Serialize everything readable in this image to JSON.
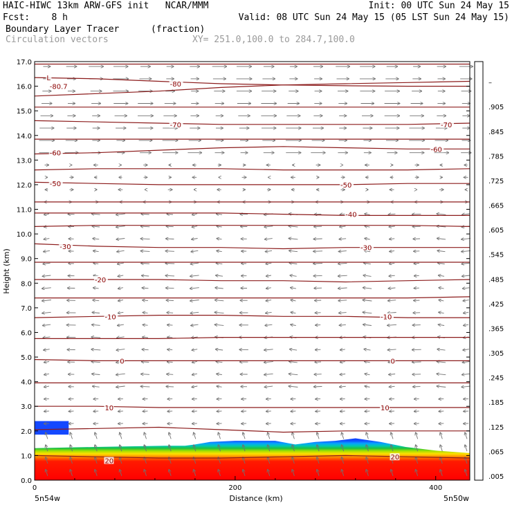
{
  "header": {
    "line1_left": "HAIC-HIWC 13km ARW-GFS init   NCAR/MMM",
    "line1_right": "Init: 00 UTC Sun 24 May 15",
    "line2_left": "Fcst:    8 h",
    "line2_right": "Valid: 08 UTC Sun 24 May 15 (05 LST Sun 24 May 15)",
    "line3_field": "Boundary Layer Tracer",
    "line3_units": "(fraction)",
    "line4_field": "Circulation vectors",
    "line4_xy": "XY= 251.0,100.0 to 284.7,100.0"
  },
  "axes": {
    "ylabel": "Height (km)",
    "xlabel": "Distance (km)",
    "x_left_label": "5n54w",
    "x_right_label": "5n50w"
  },
  "chart_data": {
    "type": "heatmap",
    "xlim": [
      0,
      434
    ],
    "ylim": [
      0,
      17
    ],
    "xticks": [
      0,
      200,
      400
    ],
    "yticks": [
      "0.0",
      "1.0",
      "2.0",
      "3.0",
      "4.0",
      "5.0",
      "6.0",
      "7.0",
      "8.0",
      "9.0",
      "10.0",
      "11.0",
      "12.0",
      "13.0",
      "14.0",
      "15.0",
      "16.0",
      "17.0"
    ],
    "tracer_top_km": [
      {
        "x": 0,
        "y": 1.3
      },
      {
        "x": 60,
        "y": 1.35
      },
      {
        "x": 130,
        "y": 1.4
      },
      {
        "x": 150,
        "y": 1.4
      },
      {
        "x": 160,
        "y": 1.45
      },
      {
        "x": 175,
        "y": 1.55
      },
      {
        "x": 200,
        "y": 1.6
      },
      {
        "x": 240,
        "y": 1.6
      },
      {
        "x": 260,
        "y": 1.45
      },
      {
        "x": 280,
        "y": 1.55
      },
      {
        "x": 300,
        "y": 1.6
      },
      {
        "x": 320,
        "y": 1.7
      },
      {
        "x": 345,
        "y": 1.55
      },
      {
        "x": 370,
        "y": 1.35
      },
      {
        "x": 400,
        "y": 1.2
      },
      {
        "x": 434,
        "y": 1.1
      }
    ],
    "tracer_blob": {
      "x0": 0,
      "x1": 34,
      "y0": 1.85,
      "y1": 2.4
    },
    "colorbar": {
      "labels": [
        ".005",
        ".065",
        ".125",
        ".185",
        ".245",
        ".305",
        ".365",
        ".425",
        ".485",
        ".545",
        ".605",
        ".665",
        ".725",
        ".785",
        ".845",
        ".905",
        "–"
      ],
      "colors": [
        "#ffffff",
        "#1040ff",
        "#08a0ff",
        "#00d0d0",
        "#00d090",
        "#00c030",
        "#40d000",
        "#90e000",
        "#d0f000",
        "#ffff00",
        "#ffd800",
        "#ffb000",
        "#ff8800",
        "#ff6000",
        "#ff3000",
        "#ff1010",
        "#ff0000"
      ]
    },
    "contours": [
      {
        "label": "-80.7",
        "y": [
          16.35,
          16.3,
          16.2,
          16.1,
          16.05,
          16.02,
          16.0,
          16.0
        ]
      },
      {
        "label": "-80",
        "y": [
          15.6,
          15.7,
          15.8,
          15.95,
          16.05,
          16.1,
          16.15,
          16.2
        ]
      },
      {
        "label": "-70",
        "y": [
          14.6,
          14.55,
          14.5,
          14.45,
          14.45,
          14.45,
          14.45,
          14.5
        ]
      },
      {
        "label": "-60",
        "y": [
          13.25,
          13.3,
          13.4,
          13.5,
          13.55,
          13.5,
          13.45,
          13.45
        ]
      },
      {
        "label": "-50",
        "y": [
          12.1,
          12.05,
          12.0,
          12.0,
          12.0,
          12.0,
          12.05,
          12.05
        ]
      },
      {
        "label": "-40",
        "y": [
          10.85,
          10.85,
          10.85,
          10.85,
          10.8,
          10.75,
          10.75,
          10.75
        ]
      },
      {
        "label": "-30",
        "y": [
          9.6,
          9.5,
          9.45,
          9.45,
          9.4,
          9.45,
          9.45,
          9.45
        ]
      },
      {
        "label": "-20",
        "y": [
          8.15,
          8.15,
          8.15,
          8.1,
          8.1,
          8.05,
          8.1,
          8.15
        ]
      },
      {
        "label": "-10",
        "y": [
          6.6,
          6.65,
          6.7,
          6.7,
          6.65,
          6.65,
          6.6,
          6.6
        ]
      },
      {
        "label": "0",
        "y": [
          4.9,
          4.85,
          4.85,
          4.85,
          4.85,
          4.85,
          4.85,
          4.85
        ]
      },
      {
        "label": "10",
        "y": [
          3.0,
          3.0,
          2.95,
          2.95,
          2.95,
          2.95,
          2.95,
          2.95
        ]
      },
      {
        "label": "20",
        "y": [
          1.0,
          0.95,
          0.9,
          0.9,
          0.95,
          1.0,
          0.95,
          0.9
        ]
      }
    ],
    "extra_lines": [
      {
        "y": [
          16.9,
          16.9,
          16.9,
          16.9,
          16.9,
          16.9,
          16.9,
          16.9
        ]
      },
      {
        "y": [
          15.15,
          15.15,
          15.15,
          15.15,
          15.15,
          15.15,
          15.15,
          15.15
        ]
      },
      {
        "y": [
          13.85,
          13.85,
          13.85,
          13.85,
          13.85,
          13.85,
          13.85,
          13.85
        ]
      },
      {
        "y": [
          12.6,
          12.65,
          12.65,
          12.65,
          12.6,
          12.6,
          12.6,
          12.65
        ]
      },
      {
        "y": [
          11.3,
          11.3,
          11.3,
          11.3,
          11.3,
          11.3,
          11.3,
          11.3
        ]
      },
      {
        "y": [
          10.3,
          10.35,
          10.35,
          10.35,
          10.35,
          10.35,
          10.35,
          10.3
        ]
      },
      {
        "y": [
          8.85,
          8.85,
          8.85,
          8.85,
          8.85,
          8.85,
          8.85,
          8.85
        ]
      },
      {
        "y": [
          7.4,
          7.4,
          7.4,
          7.4,
          7.4,
          7.4,
          7.4,
          7.45
        ]
      },
      {
        "y": [
          5.75,
          5.75,
          5.75,
          5.8,
          5.8,
          5.8,
          5.8,
          5.8
        ]
      },
      {
        "y": [
          3.95,
          3.95,
          3.95,
          3.95,
          3.95,
          3.95,
          3.95,
          3.95
        ]
      },
      {
        "y": [
          2.05,
          2.1,
          2.15,
          2.05,
          1.95,
          2.0,
          2.0,
          2.0
        ]
      }
    ],
    "contour_label_positions": [
      {
        "label": "-80.7",
        "x": 15,
        "y": 16.0
      },
      {
        "label": "L",
        "x": 12,
        "y": 16.35
      },
      {
        "label": "-80",
        "x": 135,
        "y": 16.1
      },
      {
        "label": "-70",
        "x": 135,
        "y": 14.45
      },
      {
        "label": "-70",
        "x": 405,
        "y": 14.45
      },
      {
        "label": "-60",
        "x": 15,
        "y": 13.3
      },
      {
        "label": "-60",
        "x": 395,
        "y": 13.45
      },
      {
        "label": "-50",
        "x": 15,
        "y": 12.05
      },
      {
        "label": "-50",
        "x": 305,
        "y": 12.0
      },
      {
        "label": "-40",
        "x": 310,
        "y": 10.8
      },
      {
        "label": "-30",
        "x": 25,
        "y": 9.5
      },
      {
        "label": "-30",
        "x": 325,
        "y": 9.45
      },
      {
        "label": "-20",
        "x": 60,
        "y": 8.15
      },
      {
        "label": "-10",
        "x": 70,
        "y": 6.65
      },
      {
        "label": "-10",
        "x": 345,
        "y": 6.65
      },
      {
        "label": "0",
        "x": 85,
        "y": 4.85
      },
      {
        "label": "0",
        "x": 355,
        "y": 4.85
      },
      {
        "label": "10",
        "x": 70,
        "y": 2.95
      },
      {
        "label": "10",
        "x": 345,
        "y": 2.95
      },
      {
        "label": "20",
        "x": 70,
        "y": 0.8
      },
      {
        "label": "20",
        "x": 355,
        "y": 0.95
      }
    ]
  }
}
